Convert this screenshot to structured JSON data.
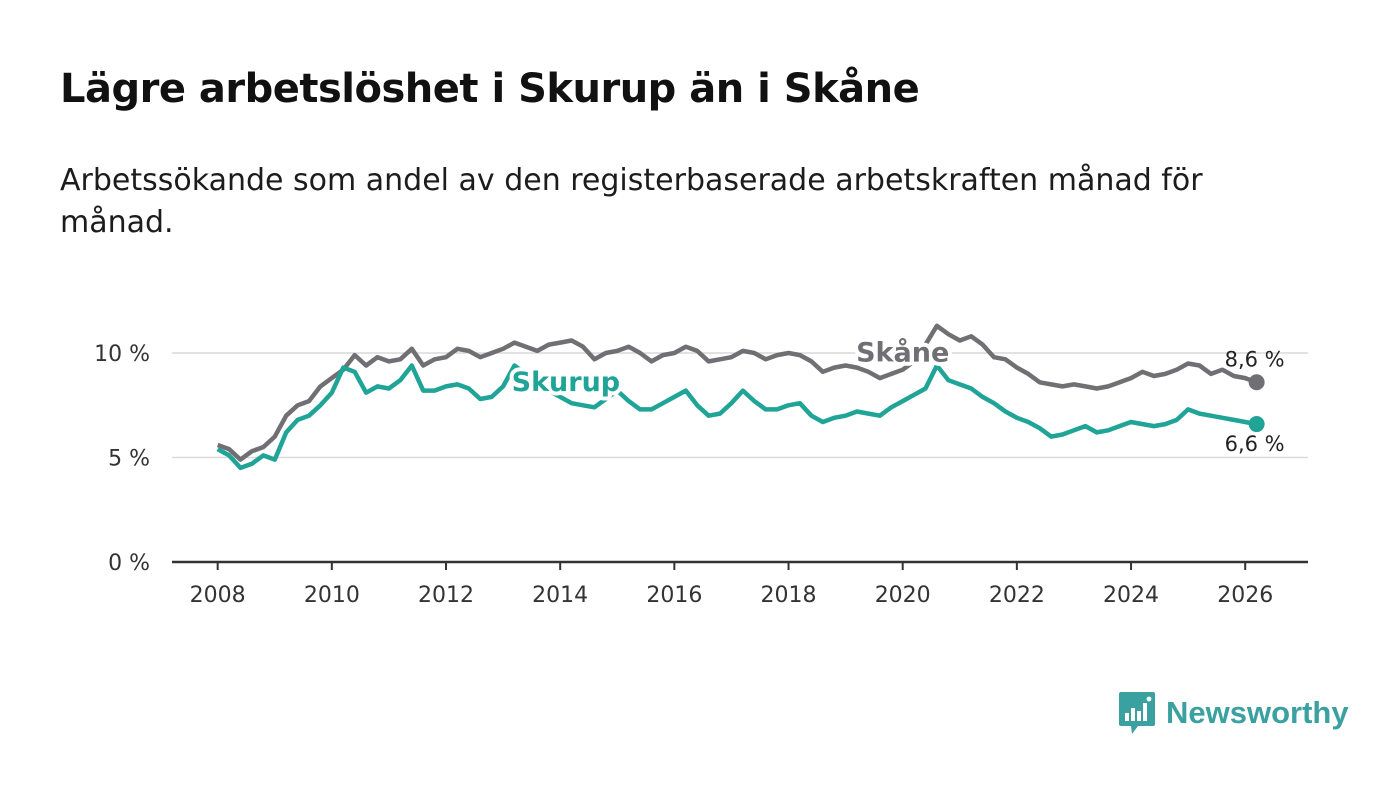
{
  "header": {
    "title": "Lägre arbetslöshet i Skurup än i Skåne",
    "subtitle": "Arbetssökande som andel av den registerbaserade arbetskraften månad för månad."
  },
  "logo": {
    "text": "Newsworthy",
    "icon": "bar-chart-speech-bubble-icon",
    "color": "#3aa0a0"
  },
  "chart_data": {
    "type": "line",
    "title": "Lägre arbetslöshet i Skurup än i Skåne",
    "xlabel": "",
    "ylabel": "",
    "xlim": [
      2007.2,
      2027.1
    ],
    "ylim": [
      0,
      10
    ],
    "x_ticks": [
      2008,
      2010,
      2012,
      2014,
      2016,
      2018,
      2020,
      2022,
      2024,
      2026
    ],
    "x_tick_labels": [
      "2008",
      "2010",
      "2012",
      "2014",
      "2016",
      "2018",
      "2020",
      "2022",
      "2024",
      "2026"
    ],
    "y_ticks": [
      0,
      5,
      10
    ],
    "y_tick_labels": [
      "0 %",
      "5 %",
      "10 %"
    ],
    "series": [
      {
        "name": "Skåne",
        "color": "#707074",
        "end_label": "8,6 %",
        "points": [
          [
            2008.0,
            5.6
          ],
          [
            2008.2,
            5.4
          ],
          [
            2008.4,
            4.9
          ],
          [
            2008.6,
            5.3
          ],
          [
            2008.8,
            5.5
          ],
          [
            2009.0,
            6.0
          ],
          [
            2009.2,
            7.0
          ],
          [
            2009.4,
            7.5
          ],
          [
            2009.6,
            7.7
          ],
          [
            2009.8,
            8.4
          ],
          [
            2010.0,
            8.8
          ],
          [
            2010.2,
            9.2
          ],
          [
            2010.4,
            9.9
          ],
          [
            2010.6,
            9.4
          ],
          [
            2010.8,
            9.8
          ],
          [
            2011.0,
            9.6
          ],
          [
            2011.2,
            9.7
          ],
          [
            2011.4,
            10.2
          ],
          [
            2011.6,
            9.4
          ],
          [
            2011.8,
            9.7
          ],
          [
            2012.0,
            9.8
          ],
          [
            2012.2,
            10.2
          ],
          [
            2012.4,
            10.1
          ],
          [
            2012.6,
            9.8
          ],
          [
            2012.8,
            10.0
          ],
          [
            2013.0,
            10.2
          ],
          [
            2013.2,
            10.5
          ],
          [
            2013.4,
            10.3
          ],
          [
            2013.6,
            10.1
          ],
          [
            2013.8,
            10.4
          ],
          [
            2014.0,
            10.5
          ],
          [
            2014.2,
            10.6
          ],
          [
            2014.4,
            10.3
          ],
          [
            2014.6,
            9.7
          ],
          [
            2014.8,
            10.0
          ],
          [
            2015.0,
            10.1
          ],
          [
            2015.2,
            10.3
          ],
          [
            2015.4,
            10.0
          ],
          [
            2015.6,
            9.6
          ],
          [
            2015.8,
            9.9
          ],
          [
            2016.0,
            10.0
          ],
          [
            2016.2,
            10.3
          ],
          [
            2016.4,
            10.1
          ],
          [
            2016.6,
            9.6
          ],
          [
            2016.8,
            9.7
          ],
          [
            2017.0,
            9.8
          ],
          [
            2017.2,
            10.1
          ],
          [
            2017.4,
            10.0
          ],
          [
            2017.6,
            9.7
          ],
          [
            2017.8,
            9.9
          ],
          [
            2018.0,
            10.0
          ],
          [
            2018.2,
            9.9
          ],
          [
            2018.4,
            9.6
          ],
          [
            2018.6,
            9.1
          ],
          [
            2018.8,
            9.3
          ],
          [
            2019.0,
            9.4
          ],
          [
            2019.2,
            9.3
          ],
          [
            2019.4,
            9.1
          ],
          [
            2019.6,
            8.8
          ],
          [
            2019.8,
            9.0
          ],
          [
            2020.0,
            9.2
          ],
          [
            2020.2,
            9.6
          ],
          [
            2020.4,
            10.4
          ],
          [
            2020.6,
            11.3
          ],
          [
            2020.8,
            10.9
          ],
          [
            2021.0,
            10.6
          ],
          [
            2021.2,
            10.8
          ],
          [
            2021.4,
            10.4
          ],
          [
            2021.6,
            9.8
          ],
          [
            2021.8,
            9.7
          ],
          [
            2022.0,
            9.3
          ],
          [
            2022.2,
            9.0
          ],
          [
            2022.4,
            8.6
          ],
          [
            2022.6,
            8.5
          ],
          [
            2022.8,
            8.4
          ],
          [
            2023.0,
            8.5
          ],
          [
            2023.2,
            8.4
          ],
          [
            2023.4,
            8.3
          ],
          [
            2023.6,
            8.4
          ],
          [
            2023.8,
            8.6
          ],
          [
            2024.0,
            8.8
          ],
          [
            2024.2,
            9.1
          ],
          [
            2024.4,
            8.9
          ],
          [
            2024.6,
            9.0
          ],
          [
            2024.8,
            9.2
          ],
          [
            2025.0,
            9.5
          ],
          [
            2025.2,
            9.4
          ],
          [
            2025.4,
            9.0
          ],
          [
            2025.6,
            9.2
          ],
          [
            2025.8,
            8.9
          ],
          [
            2026.0,
            8.8
          ],
          [
            2026.2,
            8.6
          ]
        ]
      },
      {
        "name": "Skurup",
        "color": "#1fa497",
        "end_label": "6,6 %",
        "points": [
          [
            2008.0,
            5.4
          ],
          [
            2008.2,
            5.1
          ],
          [
            2008.4,
            4.5
          ],
          [
            2008.6,
            4.7
          ],
          [
            2008.8,
            5.1
          ],
          [
            2009.0,
            4.9
          ],
          [
            2009.2,
            6.2
          ],
          [
            2009.4,
            6.8
          ],
          [
            2009.6,
            7.0
          ],
          [
            2009.8,
            7.5
          ],
          [
            2010.0,
            8.1
          ],
          [
            2010.2,
            9.3
          ],
          [
            2010.4,
            9.1
          ],
          [
            2010.6,
            8.1
          ],
          [
            2010.8,
            8.4
          ],
          [
            2011.0,
            8.3
          ],
          [
            2011.2,
            8.7
          ],
          [
            2011.4,
            9.4
          ],
          [
            2011.6,
            8.2
          ],
          [
            2011.8,
            8.2
          ],
          [
            2012.0,
            8.4
          ],
          [
            2012.2,
            8.5
          ],
          [
            2012.4,
            8.3
          ],
          [
            2012.6,
            7.8
          ],
          [
            2012.8,
            7.9
          ],
          [
            2013.0,
            8.4
          ],
          [
            2013.2,
            9.4
          ],
          [
            2013.4,
            9.0
          ],
          [
            2013.6,
            8.6
          ],
          [
            2013.8,
            8.2
          ],
          [
            2014.0,
            7.9
          ],
          [
            2014.2,
            7.6
          ],
          [
            2014.4,
            7.5
          ],
          [
            2014.6,
            7.4
          ],
          [
            2014.8,
            7.8
          ],
          [
            2015.0,
            8.2
          ],
          [
            2015.2,
            7.7
          ],
          [
            2015.4,
            7.3
          ],
          [
            2015.6,
            7.3
          ],
          [
            2015.8,
            7.6
          ],
          [
            2016.0,
            7.9
          ],
          [
            2016.2,
            8.2
          ],
          [
            2016.4,
            7.5
          ],
          [
            2016.6,
            7.0
          ],
          [
            2016.8,
            7.1
          ],
          [
            2017.0,
            7.6
          ],
          [
            2017.2,
            8.2
          ],
          [
            2017.4,
            7.7
          ],
          [
            2017.6,
            7.3
          ],
          [
            2017.8,
            7.3
          ],
          [
            2018.0,
            7.5
          ],
          [
            2018.2,
            7.6
          ],
          [
            2018.4,
            7.0
          ],
          [
            2018.6,
            6.7
          ],
          [
            2018.8,
            6.9
          ],
          [
            2019.0,
            7.0
          ],
          [
            2019.2,
            7.2
          ],
          [
            2019.4,
            7.1
          ],
          [
            2019.6,
            7.0
          ],
          [
            2019.8,
            7.4
          ],
          [
            2020.0,
            7.7
          ],
          [
            2020.2,
            8.0
          ],
          [
            2020.4,
            8.3
          ],
          [
            2020.6,
            9.4
          ],
          [
            2020.8,
            8.7
          ],
          [
            2021.0,
            8.5
          ],
          [
            2021.2,
            8.3
          ],
          [
            2021.4,
            7.9
          ],
          [
            2021.6,
            7.6
          ],
          [
            2021.8,
            7.2
          ],
          [
            2022.0,
            6.9
          ],
          [
            2022.2,
            6.7
          ],
          [
            2022.4,
            6.4
          ],
          [
            2022.6,
            6.0
          ],
          [
            2022.8,
            6.1
          ],
          [
            2023.0,
            6.3
          ],
          [
            2023.2,
            6.5
          ],
          [
            2023.4,
            6.2
          ],
          [
            2023.6,
            6.3
          ],
          [
            2023.8,
            6.5
          ],
          [
            2024.0,
            6.7
          ],
          [
            2024.2,
            6.6
          ],
          [
            2024.4,
            6.5
          ],
          [
            2024.6,
            6.6
          ],
          [
            2024.8,
            6.8
          ],
          [
            2025.0,
            7.3
          ],
          [
            2025.2,
            7.1
          ],
          [
            2025.4,
            7.0
          ],
          [
            2025.6,
            6.9
          ],
          [
            2025.8,
            6.8
          ],
          [
            2026.0,
            6.7
          ],
          [
            2026.2,
            6.6
          ]
        ]
      }
    ]
  }
}
